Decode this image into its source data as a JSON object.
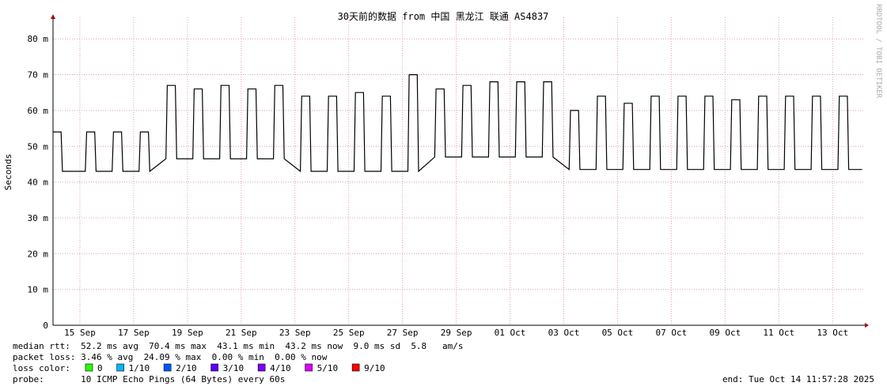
{
  "chart_data": {
    "type": "line",
    "title": "30天前的数据 from 中国 黑龙江 联通 AS4837",
    "y_label": "Seconds",
    "watermark": "RRDTOOL / TOBI OETIKER",
    "grid": true,
    "xlim": [
      0,
      30.2
    ],
    "xticks": [
      {
        "value": 1,
        "label": "15 Sep"
      },
      {
        "value": 3,
        "label": "17 Sep"
      },
      {
        "value": 5,
        "label": "19 Sep"
      },
      {
        "value": 7,
        "label": "21 Sep"
      },
      {
        "value": 9,
        "label": "23 Sep"
      },
      {
        "value": 11,
        "label": "25 Sep"
      },
      {
        "value": 13,
        "label": "27 Sep"
      },
      {
        "value": 15,
        "label": "29 Sep"
      },
      {
        "value": 17,
        "label": "01 Oct"
      },
      {
        "value": 19,
        "label": "03 Oct"
      },
      {
        "value": 21,
        "label": "05 Oct"
      },
      {
        "value": 23,
        "label": "07 Oct"
      },
      {
        "value": 25,
        "label": "09 Oct"
      },
      {
        "value": 27,
        "label": "11 Oct"
      },
      {
        "value": 29,
        "label": "13 Oct"
      }
    ],
    "ylim": [
      0,
      86
    ],
    "yticks": [
      0,
      {
        "value": 10,
        "label": "10 m"
      },
      {
        "value": 20,
        "label": "20 m"
      },
      {
        "value": 30,
        "label": "30 m"
      },
      {
        "value": 40,
        "label": "40 m"
      },
      {
        "value": 50,
        "label": "50 m"
      },
      {
        "value": 60,
        "label": "60 m"
      },
      {
        "value": 70,
        "label": "70 m"
      },
      {
        "value": 80,
        "label": "80 m"
      }
    ],
    "x": [
      0,
      0.3,
      0.35,
      1.2,
      1.25,
      1.55,
      1.6,
      2.2,
      2.25,
      2.55,
      2.6,
      3.2,
      3.25,
      3.55,
      3.6,
      4.2,
      4.25,
      4.55,
      4.6,
      5.2,
      5.25,
      5.55,
      5.6,
      6.2,
      6.25,
      6.55,
      6.6,
      7.2,
      7.25,
      7.55,
      7.6,
      8.2,
      8.25,
      8.55,
      8.6,
      9.2,
      9.25,
      9.55,
      9.6,
      10.2,
      10.25,
      10.55,
      10.6,
      11.2,
      11.25,
      11.55,
      11.6,
      12.2,
      12.25,
      12.55,
      12.6,
      13.2,
      13.25,
      13.55,
      13.6,
      14.2,
      14.25,
      14.55,
      14.6,
      15.2,
      15.25,
      15.55,
      15.6,
      16.2,
      16.25,
      16.55,
      16.6,
      17.2,
      17.25,
      17.55,
      17.6,
      18.2,
      18.25,
      18.55,
      18.6,
      19.2,
      19.25,
      19.55,
      19.6,
      20.2,
      20.25,
      20.55,
      20.6,
      21.2,
      21.25,
      21.55,
      21.6,
      22.2,
      22.25,
      22.55,
      22.6,
      23.2,
      23.25,
      23.55,
      23.6,
      24.2,
      24.25,
      24.55,
      24.6,
      25.2,
      25.25,
      25.55,
      25.6,
      26.2,
      26.25,
      26.55,
      26.6,
      27.2,
      27.25,
      27.55,
      27.6,
      28.2,
      28.25,
      28.55,
      28.6,
      29.2,
      29.25,
      29.55,
      29.6,
      30.1
    ],
    "series": [
      {
        "name": "median rtt",
        "color": "#000000",
        "values": [
          54,
          54,
          43,
          43,
          54,
          54,
          43,
          43,
          54,
          54,
          43,
          43,
          54,
          54,
          43,
          46.5,
          67,
          67,
          46.5,
          46.5,
          66,
          66,
          46.5,
          46.5,
          67,
          67,
          46.5,
          46.5,
          66,
          66,
          46.5,
          46.5,
          67,
          67,
          46.5,
          43,
          64,
          64,
          43,
          43,
          64,
          64,
          43,
          43,
          65,
          65,
          43,
          43,
          64,
          64,
          43,
          43,
          70,
          70,
          43,
          47,
          66,
          66,
          47,
          47,
          67,
          67,
          47,
          47,
          68,
          68,
          47,
          47,
          68,
          68,
          47,
          47,
          68,
          68,
          47,
          43.5,
          60,
          60,
          43.5,
          43.5,
          64,
          64,
          43.5,
          43.5,
          62,
          62,
          43.5,
          43.5,
          64,
          64,
          43.5,
          43.5,
          64,
          64,
          43.5,
          43.5,
          64,
          64,
          43.5,
          43.5,
          63,
          63,
          43.5,
          43.5,
          64,
          64,
          43.5,
          43.5,
          64,
          64,
          43.5,
          43.5,
          64,
          64,
          43.5,
          43.5,
          64,
          64,
          43.5,
          43.5
        ]
      }
    ],
    "stats": {
      "median_rtt": "median rtt:  52.2 ms avg  70.4 ms max  43.1 ms min  43.2 ms now  9.0 ms sd  5.8   am/s",
      "packet_loss": "packet loss: 3.46 % avg  24.09 % max  0.00 % min  0.00 % now",
      "loss_color_label": "loss color:",
      "loss_colors": [
        {
          "label": "0",
          "color": "#26ff00"
        },
        {
          "label": "1/10",
          "color": "#00b8ff"
        },
        {
          "label": "2/10",
          "color": "#0059ff"
        },
        {
          "label": "3/10",
          "color": "#5e00ff"
        },
        {
          "label": "4/10",
          "color": "#7e00ff"
        },
        {
          "label": "5/10",
          "color": "#dd00ff"
        },
        {
          "label": "9/10",
          "color": "#ff0000"
        }
      ],
      "probe": "probe:       10 ICMP Echo Pings (64 Bytes) every 60s",
      "end": "end: Tue Oct 14 11:57:28 2025"
    }
  }
}
